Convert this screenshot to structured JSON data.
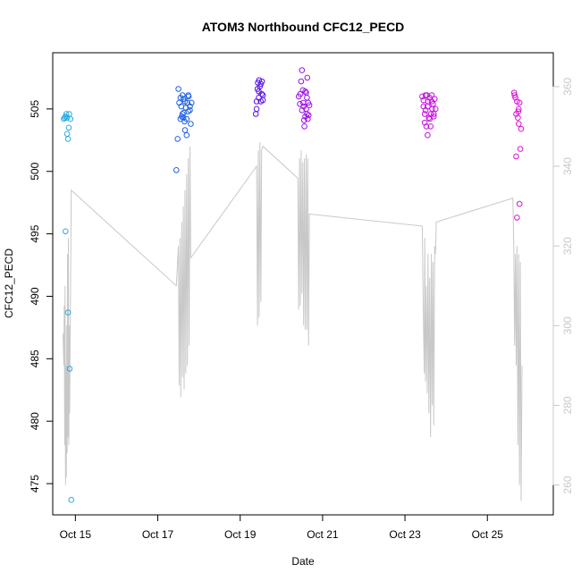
{
  "chart_data": {
    "type": "scatter",
    "title": "ATOM3 Northbound CFC12_PECD",
    "xlabel": "Date",
    "ylabel": "CFC12_PECD",
    "x_ticks": [
      "Oct 15",
      "Oct 17",
      "Oct 19",
      "Oct 21",
      "Oct 23",
      "Oct 25"
    ],
    "x_tick_days": [
      15,
      17,
      19,
      21,
      23,
      25
    ],
    "xlim": [
      14.45,
      26.6
    ],
    "ylim": [
      472.5,
      509.5
    ],
    "y_ticks": [
      475,
      480,
      485,
      490,
      495,
      500,
      505
    ],
    "y2lim": [
      252.5,
      368.5
    ],
    "y2_ticks": [
      260,
      280,
      300,
      320,
      340,
      360
    ],
    "y2_color": "#c8c8c8",
    "series": [
      {
        "color": "#29abe2",
        "points": [
          [
            14.72,
            504.2
          ],
          [
            14.74,
            504.3
          ],
          [
            14.76,
            504.4
          ],
          [
            14.78,
            504.6
          ],
          [
            14.8,
            504.3
          ],
          [
            14.82,
            502.6
          ],
          [
            14.8,
            503
          ],
          [
            14.84,
            503.5
          ],
          [
            14.85,
            504.6
          ],
          [
            14.88,
            504.2
          ],
          [
            14.76,
            495.2
          ],
          [
            14.82,
            488.7
          ],
          [
            14.86,
            484.2
          ],
          [
            14.9,
            473.7
          ]
        ]
      },
      {
        "color": "#1e5fe0",
        "points": [
          [
            17.45,
            500.1
          ],
          [
            17.48,
            502.6
          ],
          [
            17.5,
            506.6
          ],
          [
            17.52,
            505.5
          ],
          [
            17.55,
            504.2
          ],
          [
            17.57,
            505.2
          ],
          [
            17.6,
            504.6
          ],
          [
            17.6,
            506.1
          ],
          [
            17.62,
            505.8
          ],
          [
            17.63,
            504.7
          ],
          [
            17.65,
            504
          ],
          [
            17.66,
            503.3
          ],
          [
            17.68,
            505.1
          ],
          [
            17.7,
            502.9
          ],
          [
            17.72,
            505.5
          ],
          [
            17.74,
            504.8
          ],
          [
            17.75,
            506
          ],
          [
            17.78,
            505.2
          ],
          [
            17.8,
            503.8
          ],
          [
            17.82,
            505.5
          ],
          [
            17.55,
            505.9
          ],
          [
            17.58,
            504.4
          ],
          [
            17.62,
            504.3
          ],
          [
            17.66,
            505.6
          ],
          [
            17.7,
            504.2
          ],
          [
            17.74,
            506.1
          ],
          [
            17.78,
            504.9
          ]
        ]
      },
      {
        "color": "#5a10e8",
        "points": [
          [
            19.38,
            504.6
          ],
          [
            19.4,
            505.6
          ],
          [
            19.42,
            506.6
          ],
          [
            19.43,
            507.1
          ],
          [
            19.45,
            505.9
          ],
          [
            19.46,
            507.3
          ],
          [
            19.48,
            506.8
          ],
          [
            19.5,
            505.6
          ],
          [
            19.52,
            506.2
          ],
          [
            19.53,
            507.2
          ],
          [
            19.55,
            506.1
          ],
          [
            19.4,
            505
          ],
          [
            19.45,
            506.4
          ],
          [
            19.5,
            507
          ],
          [
            19.55,
            505.7
          ]
        ]
      },
      {
        "color": "#9a10e8",
        "points": [
          [
            20.42,
            506
          ],
          [
            20.45,
            505.4
          ],
          [
            20.48,
            507.2
          ],
          [
            20.5,
            508.1
          ],
          [
            20.52,
            506.5
          ],
          [
            20.53,
            505.5
          ],
          [
            20.55,
            504.1
          ],
          [
            20.56,
            503.6
          ],
          [
            20.58,
            506.4
          ],
          [
            20.6,
            505
          ],
          [
            20.62,
            505.9
          ],
          [
            20.63,
            507.5
          ],
          [
            20.65,
            505.5
          ],
          [
            20.66,
            504.5
          ],
          [
            20.68,
            505.3
          ],
          [
            20.5,
            504.9
          ],
          [
            20.54,
            505.2
          ],
          [
            20.58,
            504.4
          ],
          [
            20.62,
            504.6
          ],
          [
            20.46,
            506.2
          ],
          [
            20.6,
            506.3
          ],
          [
            20.64,
            504.2
          ]
        ]
      },
      {
        "color": "#c510e0",
        "points": [
          [
            23.42,
            506
          ],
          [
            23.45,
            505.2
          ],
          [
            23.48,
            504.6
          ],
          [
            23.5,
            504.9
          ],
          [
            23.52,
            503.6
          ],
          [
            23.53,
            506.1
          ],
          [
            23.55,
            502.9
          ],
          [
            23.56,
            505.6
          ],
          [
            23.58,
            504.3
          ],
          [
            23.6,
            505.9
          ],
          [
            23.62,
            503.6
          ],
          [
            23.63,
            504.6
          ],
          [
            23.65,
            506.1
          ],
          [
            23.66,
            505
          ],
          [
            23.68,
            505.4
          ],
          [
            23.7,
            504.6
          ],
          [
            23.72,
            505.8
          ],
          [
            23.74,
            505
          ],
          [
            23.45,
            505.7
          ],
          [
            23.5,
            506.1
          ],
          [
            23.55,
            505.2
          ],
          [
            23.6,
            504.2
          ],
          [
            23.65,
            505.6
          ],
          [
            23.7,
            504.4
          ],
          [
            23.48,
            503.9
          ]
        ]
      },
      {
        "color": "#e010d6",
        "points": [
          [
            25.65,
            506.3
          ],
          [
            25.66,
            506.1
          ],
          [
            25.68,
            505.9
          ],
          [
            25.7,
            501.2
          ],
          [
            25.72,
            505.6
          ],
          [
            25.74,
            504.3
          ],
          [
            25.75,
            504.8
          ],
          [
            25.76,
            503.8
          ],
          [
            25.78,
            505.5
          ],
          [
            25.8,
            501.8
          ],
          [
            25.82,
            503.4
          ],
          [
            25.72,
            496.3
          ],
          [
            25.78,
            497.4
          ],
          [
            25.7,
            504.6
          ],
          [
            25.76,
            505
          ]
        ]
      }
    ],
    "line_series": {
      "axis": "right",
      "color": "#c8c8c8",
      "points": [
        [
          14.7,
          298
        ],
        [
          14.72,
          290
        ],
        [
          14.73,
          305
        ],
        [
          14.74,
          270
        ],
        [
          14.75,
          310
        ],
        [
          14.76,
          260
        ],
        [
          14.77,
          290
        ],
        [
          14.78,
          262
        ],
        [
          14.79,
          300
        ],
        [
          14.8,
          268
        ],
        [
          14.81,
          318
        ],
        [
          14.82,
          272
        ],
        [
          14.83,
          322
        ],
        [
          14.84,
          270
        ],
        [
          14.85,
          300
        ],
        [
          14.86,
          278
        ],
        [
          14.9,
          334
        ],
        [
          17.45,
          310
        ],
        [
          17.5,
          320
        ],
        [
          17.52,
          285
        ],
        [
          17.54,
          322
        ],
        [
          17.56,
          282
        ],
        [
          17.58,
          326
        ],
        [
          17.6,
          287
        ],
        [
          17.62,
          330
        ],
        [
          17.64,
          284
        ],
        [
          17.66,
          334
        ],
        [
          17.68,
          288
        ],
        [
          17.7,
          338
        ],
        [
          17.72,
          290
        ],
        [
          17.74,
          342
        ],
        [
          17.76,
          295
        ],
        [
          17.78,
          345
        ],
        [
          17.8,
          317
        ],
        [
          19.4,
          340
        ],
        [
          19.42,
          300
        ],
        [
          19.44,
          344
        ],
        [
          19.46,
          302
        ],
        [
          19.48,
          346
        ],
        [
          19.5,
          306
        ],
        [
          19.52,
          344
        ],
        [
          19.55,
          345
        ],
        [
          20.4,
          337
        ],
        [
          20.42,
          304
        ],
        [
          20.44,
          342
        ],
        [
          20.46,
          305
        ],
        [
          20.48,
          344
        ],
        [
          20.5,
          308
        ],
        [
          20.52,
          341
        ],
        [
          20.54,
          300
        ],
        [
          20.56,
          342
        ],
        [
          20.58,
          299
        ],
        [
          20.6,
          343
        ],
        [
          20.62,
          299
        ],
        [
          20.64,
          342
        ],
        [
          20.66,
          295
        ],
        [
          20.68,
          328
        ],
        [
          23.42,
          325
        ],
        [
          23.45,
          300
        ],
        [
          23.47,
          288
        ],
        [
          23.48,
          322
        ],
        [
          23.5,
          286
        ],
        [
          23.52,
          310
        ],
        [
          23.54,
          283
        ],
        [
          23.56,
          318
        ],
        [
          23.58,
          278
        ],
        [
          23.6,
          312
        ],
        [
          23.62,
          272
        ],
        [
          23.64,
          318
        ],
        [
          23.66,
          280
        ],
        [
          23.68,
          316
        ],
        [
          23.7,
          275
        ],
        [
          23.72,
          320
        ],
        [
          23.74,
          318
        ],
        [
          23.76,
          326
        ],
        [
          25.62,
          332
        ],
        [
          25.64,
          320
        ],
        [
          25.66,
          295
        ],
        [
          25.68,
          318
        ],
        [
          25.7,
          290
        ],
        [
          25.72,
          320
        ],
        [
          25.74,
          270
        ],
        [
          25.76,
          318
        ],
        [
          25.78,
          260
        ],
        [
          25.8,
          316
        ],
        [
          25.82,
          256
        ],
        [
          25.84,
          290
        ]
      ]
    },
    "grid": false,
    "legend": "none"
  }
}
